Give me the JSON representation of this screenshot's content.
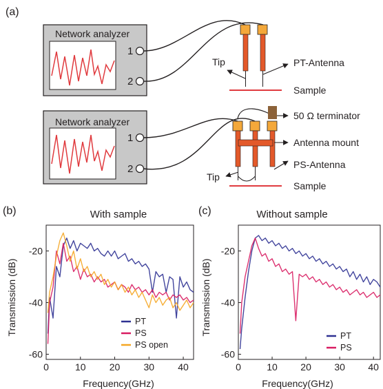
{
  "panel_a": {
    "label": "(a)",
    "top": {
      "analyzer_label": "Network analyzer",
      "port1": "1",
      "port2": "2",
      "tip": "Tip",
      "antenna": "PT-Antenna",
      "sample": "Sample"
    },
    "bottom": {
      "analyzer_label": "Network analyzer",
      "port1": "1",
      "port2": "2",
      "terminator": "50 Ω terminator",
      "mount": "Antenna mount",
      "antenna": "PS-Antenna",
      "tip": "Tip",
      "sample": "Sample"
    }
  },
  "panel_b": {
    "label": "(b)",
    "title": "With sample"
  },
  "panel_c": {
    "label": "(c)",
    "title": "Without sample"
  },
  "colors": {
    "PT": "#2e3192",
    "PS": "#d81b60",
    "PS_open": "#f5a623",
    "antenna": "#e3592a",
    "antenna_cap": "#f4a83a",
    "sample_line": "#e03a3e",
    "analyzer_bg": "#c8c8c8",
    "terminator": "#8c6239"
  },
  "chart_data": [
    {
      "type": "line",
      "title": "With sample",
      "xlabel": "Frequency(GHz)",
      "ylabel": "Transmission (dB)",
      "xlim": [
        0,
        43
      ],
      "ylim": [
        -62,
        -10
      ],
      "xticks": [
        "0",
        "10",
        "20",
        "30",
        "40"
      ],
      "yticks": [
        "-20",
        "-40",
        "-60"
      ],
      "legend_position": "bottom-right",
      "series": [
        {
          "name": "PT",
          "x": [
            0.5,
            1,
            2,
            3,
            4,
            5,
            6,
            7,
            8,
            9,
            10,
            11,
            12,
            13,
            14,
            15,
            16,
            17,
            18,
            19,
            20,
            21,
            22,
            23,
            24,
            25,
            26,
            27,
            28,
            29,
            30,
            31,
            32,
            33,
            34,
            35,
            36,
            37,
            38,
            39,
            40,
            41,
            42,
            43
          ],
          "y": [
            -52,
            -38,
            -46,
            -26,
            -30,
            -18,
            -15,
            -19,
            -16,
            -20,
            -17,
            -18,
            -19,
            -17,
            -20,
            -19,
            -21,
            -22,
            -20,
            -22,
            -20,
            -23,
            -22,
            -21,
            -24,
            -23,
            -25,
            -24,
            -26,
            -25,
            -27,
            -36,
            -28,
            -30,
            -29,
            -36,
            -30,
            -31,
            -46,
            -30,
            -34,
            -32,
            -35,
            -36
          ]
        },
        {
          "name": "PS",
          "x": [
            0.5,
            1,
            2,
            3,
            4,
            5,
            6,
            7,
            8,
            9,
            10,
            11,
            12,
            13,
            14,
            15,
            16,
            17,
            18,
            19,
            20,
            21,
            22,
            23,
            24,
            25,
            26,
            27,
            28,
            29,
            30,
            31,
            32,
            33,
            34,
            35,
            36,
            37,
            38,
            39,
            40,
            41,
            42,
            43
          ],
          "y": [
            -56,
            -40,
            -34,
            -20,
            -25,
            -17,
            -24,
            -22,
            -28,
            -26,
            -31,
            -27,
            -30,
            -29,
            -32,
            -30,
            -32,
            -31,
            -34,
            -33,
            -32,
            -35,
            -33,
            -34,
            -36,
            -33,
            -35,
            -34,
            -36,
            -35,
            -37,
            -35,
            -38,
            -36,
            -37,
            -36,
            -39,
            -37,
            -38,
            -37,
            -39,
            -38,
            -40,
            -39
          ]
        },
        {
          "name": "PS open",
          "x": [
            0.5,
            1,
            2,
            3,
            4,
            5,
            6,
            7,
            8,
            9,
            10,
            11,
            12,
            13,
            14,
            15,
            16,
            17,
            18,
            19,
            20,
            21,
            22,
            23,
            24,
            25,
            26,
            27,
            28,
            29,
            30,
            31,
            32,
            33,
            34,
            35,
            36,
            37,
            38,
            39,
            40,
            41,
            42,
            43
          ],
          "y": [
            -44,
            -36,
            -30,
            -22,
            -16,
            -13,
            -18,
            -24,
            -20,
            -27,
            -23,
            -28,
            -26,
            -30,
            -28,
            -31,
            -29,
            -33,
            -31,
            -34,
            -32,
            -35,
            -33,
            -36,
            -34,
            -37,
            -35,
            -38,
            -36,
            -39,
            -42,
            -37,
            -40,
            -38,
            -41,
            -39,
            -38,
            -42,
            -40,
            -43,
            -41,
            -39,
            -42,
            -40
          ]
        }
      ]
    },
    {
      "type": "line",
      "title": "Without sample",
      "xlabel": "Frequency(GHz)",
      "ylabel": "Transmission (dB)",
      "xlim": [
        0,
        42
      ],
      "ylim": [
        -62,
        -10
      ],
      "xticks": [
        "0",
        "10",
        "20",
        "30",
        "40"
      ],
      "yticks": [
        "-20",
        "-40",
        "-60"
      ],
      "legend_position": "bottom-right",
      "series": [
        {
          "name": "PT",
          "x": [
            0.5,
            1,
            2,
            3,
            4,
            5,
            6,
            7,
            8,
            9,
            10,
            11,
            12,
            13,
            14,
            15,
            16,
            17,
            18,
            19,
            20,
            21,
            22,
            23,
            24,
            25,
            26,
            27,
            28,
            29,
            30,
            31,
            32,
            33,
            34,
            35,
            36,
            37,
            38,
            39,
            40,
            41,
            42
          ],
          "y": [
            -58,
            -50,
            -38,
            -28,
            -20,
            -15,
            -14,
            -16,
            -15,
            -17,
            -16,
            -18,
            -17,
            -19,
            -18,
            -20,
            -19,
            -21,
            -20,
            -22,
            -21,
            -23,
            -22,
            -24,
            -23,
            -25,
            -24,
            -26,
            -25,
            -27,
            -26,
            -28,
            -27,
            -30,
            -28,
            -31,
            -29,
            -32,
            -30,
            -33,
            -31,
            -32,
            -34
          ]
        },
        {
          "name": "PS",
          "x": [
            0.5,
            1,
            2,
            3,
            4,
            5,
            6,
            7,
            8,
            9,
            10,
            11,
            12,
            13,
            14,
            15,
            16,
            17,
            18,
            19,
            20,
            21,
            22,
            23,
            24,
            25,
            26,
            27,
            28,
            29,
            30,
            31,
            32,
            33,
            34,
            35,
            36,
            37,
            38,
            39,
            40,
            41,
            42
          ],
          "y": [
            -52,
            -40,
            -30,
            -24,
            -18,
            -15,
            -19,
            -22,
            -21,
            -24,
            -23,
            -26,
            -25,
            -28,
            -27,
            -29,
            -28,
            -47,
            -29,
            -30,
            -29,
            -31,
            -30,
            -32,
            -31,
            -33,
            -32,
            -34,
            -33,
            -35,
            -34,
            -36,
            -35,
            -37,
            -36,
            -35,
            -37,
            -36,
            -38,
            -37,
            -36,
            -38,
            -37
          ]
        }
      ]
    }
  ]
}
